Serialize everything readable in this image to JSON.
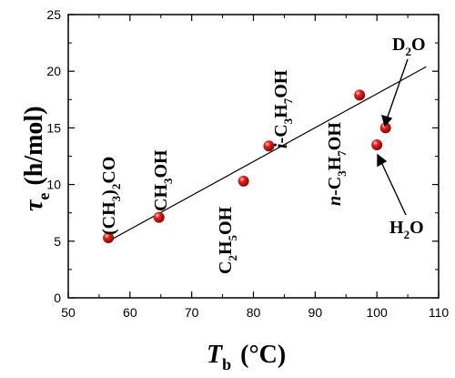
{
  "chart_data": {
    "type": "scatter",
    "xlim": [
      50,
      110
    ],
    "ylim": [
      0,
      25
    ],
    "x_ticks": [
      50,
      60,
      70,
      80,
      90,
      100,
      110
    ],
    "y_ticks": [
      0,
      5,
      10,
      15,
      20,
      25
    ],
    "xlabel": {
      "main": "T",
      "sub": "b",
      "unit": "(°C)"
    },
    "ylabel": {
      "main": "τ",
      "sub": "e",
      "unit": "(h/mol)"
    },
    "points": [
      {
        "x": 56.5,
        "y": 5.3
      },
      {
        "x": 64.7,
        "y": 7.1
      },
      {
        "x": 78.4,
        "y": 10.3
      },
      {
        "x": 82.5,
        "y": 13.4
      },
      {
        "x": 97.2,
        "y": 17.9
      },
      {
        "x": 100.0,
        "y": 13.5
      },
      {
        "x": 101.4,
        "y": 15.0
      }
    ],
    "fit_line": {
      "x": [
        56.5,
        108.0
      ],
      "y": [
        5.0,
        20.4
      ]
    },
    "point_color": "#e8201c",
    "annotations": {
      "acetone": "(CH3)2CO",
      "methanol": "CH3OH",
      "ethanol": "C2H5OH",
      "isopropanol": "i-C3H7OH",
      "npropanol": "n-C3H7OH",
      "d2o": "D2O",
      "h2o": "H2O"
    }
  }
}
